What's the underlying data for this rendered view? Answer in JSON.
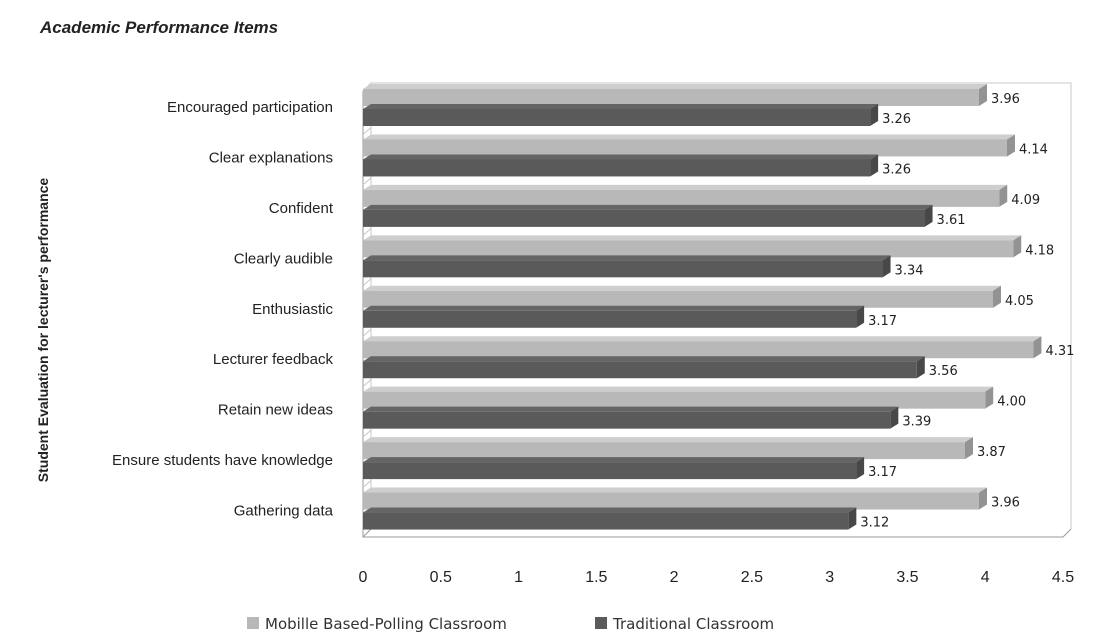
{
  "chart_data": {
    "type": "bar",
    "orientation": "horizontal",
    "title": "Academic Performance Items",
    "ylabel": "Student Evaluation for lecturer's performance",
    "xlabel": "",
    "xlim": [
      0,
      4.5
    ],
    "xticks": [
      "0",
      "0.5",
      "1",
      "1.5",
      "2",
      "2.5",
      "3",
      "3.5",
      "4",
      "4.5"
    ],
    "categories": [
      "Encouraged participation",
      "Clear explanations",
      "Confident",
      "Clearly audible",
      "Enthusiastic",
      "Lecturer feedback",
      "Retain new ideas",
      "Ensure students have knowledge",
      "Gathering data"
    ],
    "series": [
      {
        "name": "Mobille Based-Polling Classroom",
        "color": "#b8b8b8",
        "values": [
          3.96,
          4.14,
          4.09,
          4.18,
          4.05,
          4.31,
          4.0,
          3.87,
          3.96
        ],
        "labels": [
          "3.96",
          "4.14",
          "4.09",
          "4.18",
          "4.05",
          "4.31",
          "4.00",
          "3.87",
          "3.96"
        ]
      },
      {
        "name": "Traditional Classroom",
        "color": "#5a5a5a",
        "values": [
          3.26,
          3.26,
          3.61,
          3.34,
          3.17,
          3.56,
          3.39,
          3.17,
          3.12
        ],
        "labels": [
          "3.26",
          "3.26",
          "3.61",
          "3.34",
          "3.17",
          "3.56",
          "3.39",
          "3.17",
          "3.12"
        ]
      }
    ],
    "legend": "bottom",
    "grid": false
  }
}
